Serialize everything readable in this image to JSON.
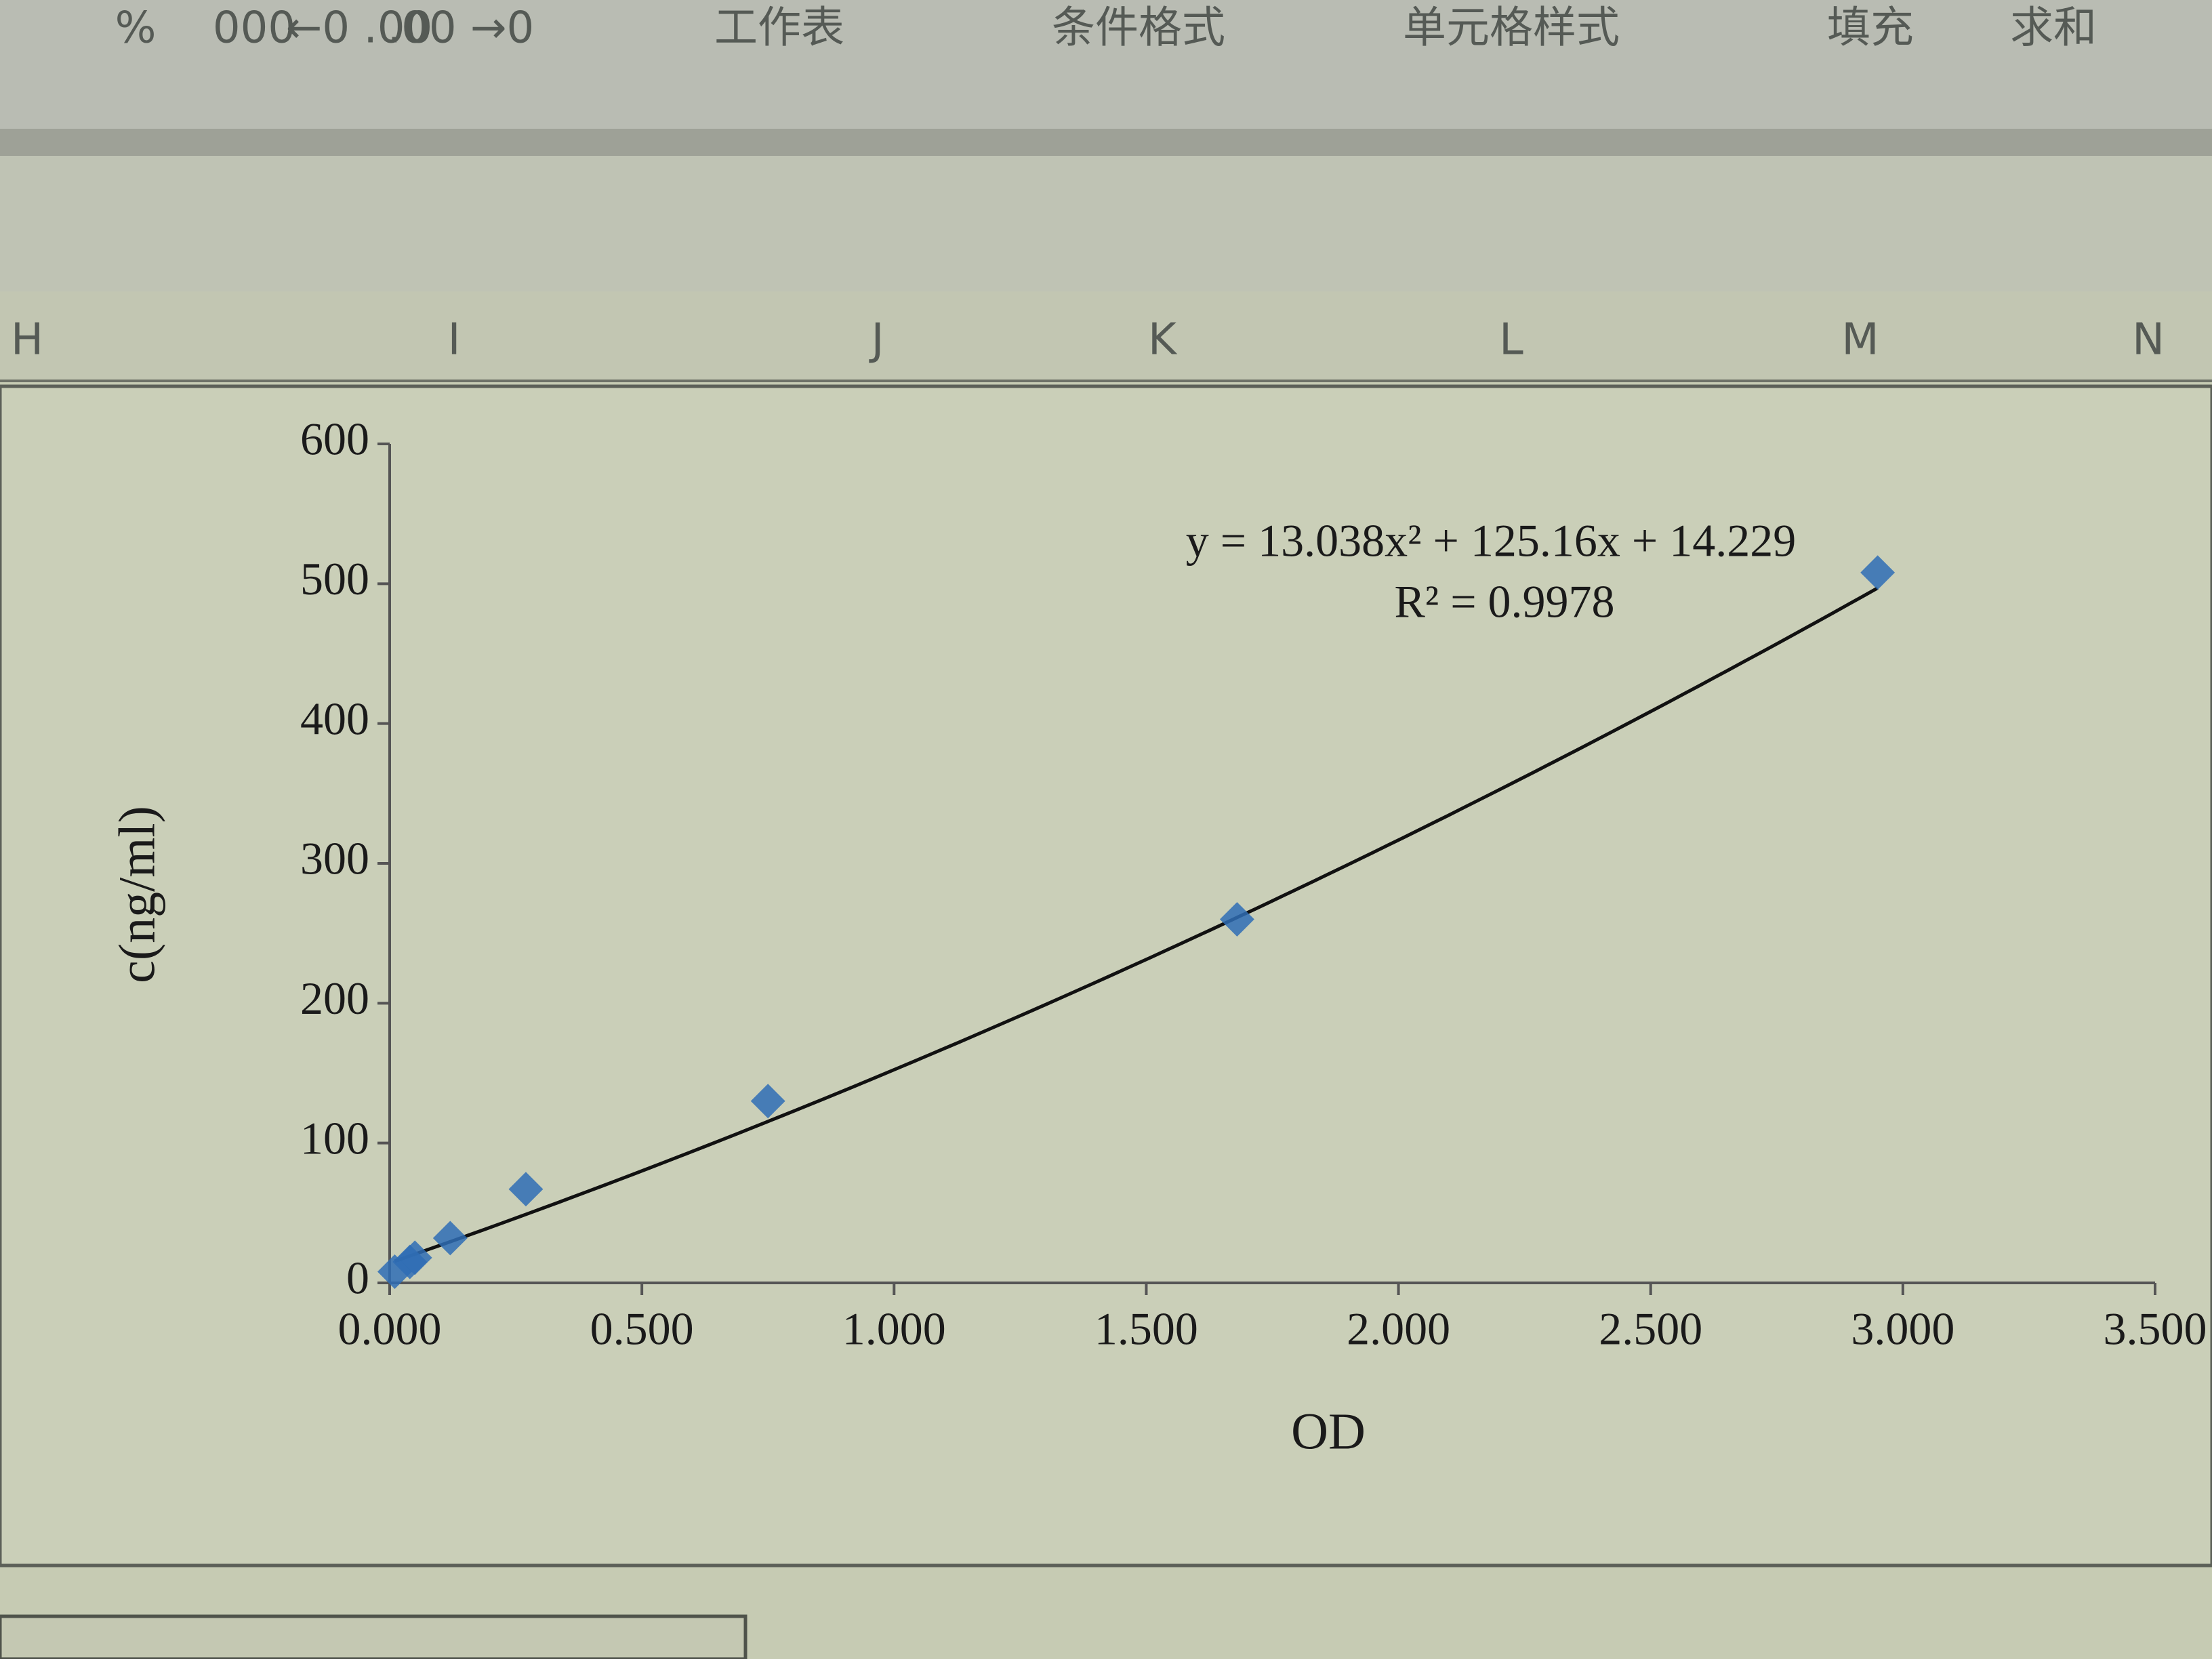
{
  "toolbar": {
    "items": [
      "%",
      "000",
      "←0 .00",
      ".00 →0",
      "工作表",
      "条件格式",
      "单元格样式",
      "填充",
      "求和"
    ]
  },
  "columns": [
    "H",
    "I",
    "J",
    "K",
    "L",
    "M",
    "N"
  ],
  "chart_data": {
    "type": "scatter",
    "x_label": "OD",
    "y_label": "c(ng/ml)",
    "series": [
      {
        "name": "c(ng/ml)",
        "color": "#2f6db5",
        "x": [
          0.01,
          0.04,
          0.05,
          0.12,
          0.27,
          0.75,
          1.68,
          2.95
        ],
        "values": [
          8,
          15,
          18,
          32,
          67,
          130,
          260,
          508
        ]
      }
    ],
    "xlim": [
      0,
      3.5
    ],
    "xticks": [
      {
        "value": 0,
        "label": "0.000"
      },
      {
        "value": 0.5,
        "label": "0.500"
      },
      {
        "value": 1,
        "label": "1.000"
      },
      {
        "value": 1.5,
        "label": "1.500"
      },
      {
        "value": 2,
        "label": "2.000"
      },
      {
        "value": 2.5,
        "label": "2.500"
      },
      {
        "value": 3,
        "label": "3.000"
      },
      {
        "value": 3.5,
        "label": "3.500"
      }
    ],
    "ylim": [
      0,
      600
    ],
    "yticks": [
      0,
      100,
      200,
      300,
      400,
      500,
      600
    ],
    "grid": false,
    "trendline": {
      "type": "polynomial",
      "coefficients": [
        13.038,
        125.16,
        14.229
      ],
      "color": "#111111",
      "equation": "y = 13.038x² + 125.16x + 14.229",
      "r_squared": "R² = 0.9978"
    }
  }
}
